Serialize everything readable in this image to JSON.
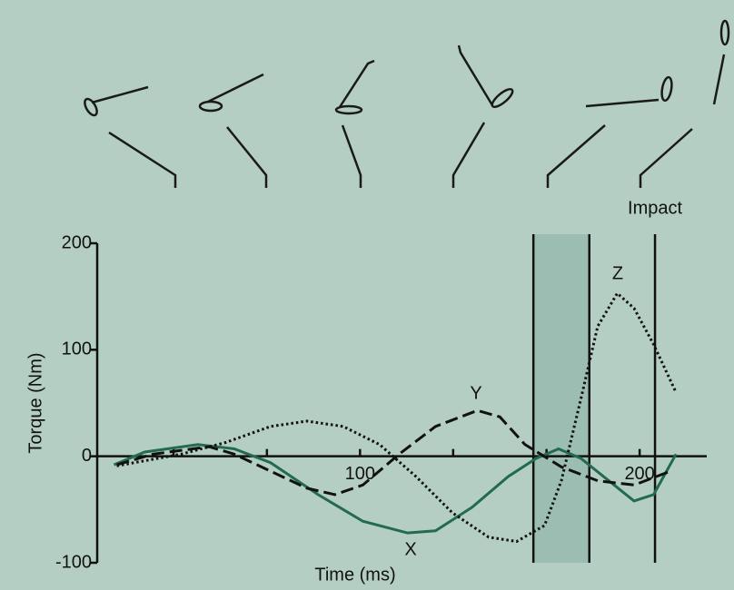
{
  "chart_data": {
    "type": "line",
    "x_label": "Time (ms)",
    "y_label": "Torque (Nm)",
    "xlim": [
      6,
      224
    ],
    "ylim": [
      -100,
      200
    ],
    "xticks": [
      100,
      200
    ],
    "xminorticks": [
      33.3,
      66.7,
      133.3,
      166.7
    ],
    "yticks": [
      200,
      100,
      0,
      -100
    ],
    "shaded_span": [
      162,
      182
    ],
    "vlines": [
      162,
      182,
      205.5
    ],
    "annotations": [
      {
        "text": "Impact",
        "x": 205.5
      }
    ],
    "series": [
      {
        "name": "X",
        "color": "#236b4e",
        "dash": "solid",
        "x": [
          12,
          23,
          42,
          55,
          68,
          85,
          101,
          117,
          127,
          140,
          153,
          163,
          171,
          179,
          189,
          198,
          205,
          213
        ],
        "values": [
          -8,
          4,
          11,
          7,
          -6,
          -36,
          -61,
          -72,
          -70,
          -48,
          -19,
          -2,
          7,
          -2,
          -23,
          -42,
          -36,
          2
        ]
      },
      {
        "name": "Y",
        "color": "#111111",
        "dash": "dashed",
        "x": [
          13,
          26,
          46,
          55,
          68,
          81,
          91,
          101,
          114,
          127,
          142,
          150,
          159,
          172,
          185,
          198,
          211
        ],
        "values": [
          -8,
          2,
          9,
          2,
          -14,
          -30,
          -36,
          -27,
          2,
          28,
          43,
          37,
          11,
          -10,
          -23,
          -27,
          -14
        ]
      },
      {
        "name": "Z",
        "color": "#111111",
        "dash": "dotted",
        "x": [
          13,
          36,
          52,
          68,
          81,
          94,
          107,
          120,
          133,
          146,
          156,
          166,
          172,
          179,
          185,
          192,
          198,
          205,
          213
        ],
        "values": [
          -9,
          2,
          13,
          28,
          33,
          28,
          11,
          -19,
          -53,
          -76,
          -80,
          -65,
          -23,
          54,
          122,
          153,
          139,
          105,
          60
        ]
      }
    ]
  }
}
